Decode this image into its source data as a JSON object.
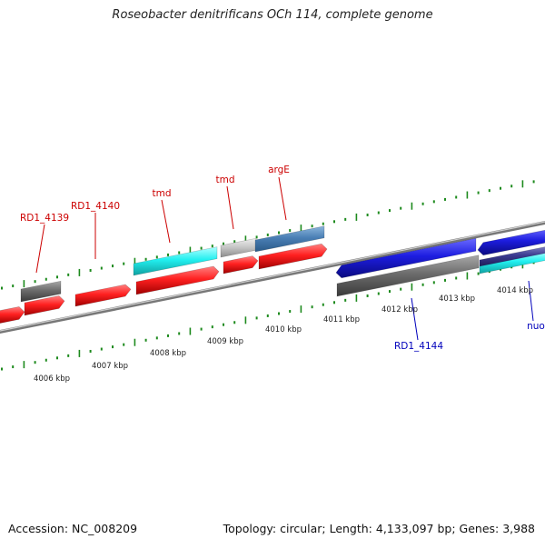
{
  "title": "Roseobacter denitrificans OCh 114, complete genome",
  "footer": {
    "accession": "Accession: NC_008209",
    "summary": "Topology: circular; Length: 4,133,097 bp; Genes: 3,988"
  },
  "colors": {
    "forward_gene": "#ff2020",
    "reverse_gene": "#1d1de0",
    "cyan_gene": "#22f0f0",
    "gray_gene": "#6c6c6c",
    "light_gray_gene": "#c8c8c8",
    "steel_blue_gene": "#4a7fb5",
    "tick": "#1d8a1d",
    "forward_label": "#cc0000",
    "reverse_label": "#0000bb"
  },
  "kbp_labels": [
    "4006 kbp",
    "4007 kbp",
    "4008 kbp",
    "4009 kbp",
    "4010 kbp",
    "4011 kbp",
    "4012 kbp",
    "4013 kbp",
    "4014 kbp"
  ],
  "forward_gene_labels": [
    "RD1_4139",
    "RD1_4140",
    "tmd",
    "tmd",
    "argE"
  ],
  "reverse_gene_labels": [
    "RD1_4144",
    "nuo"
  ]
}
